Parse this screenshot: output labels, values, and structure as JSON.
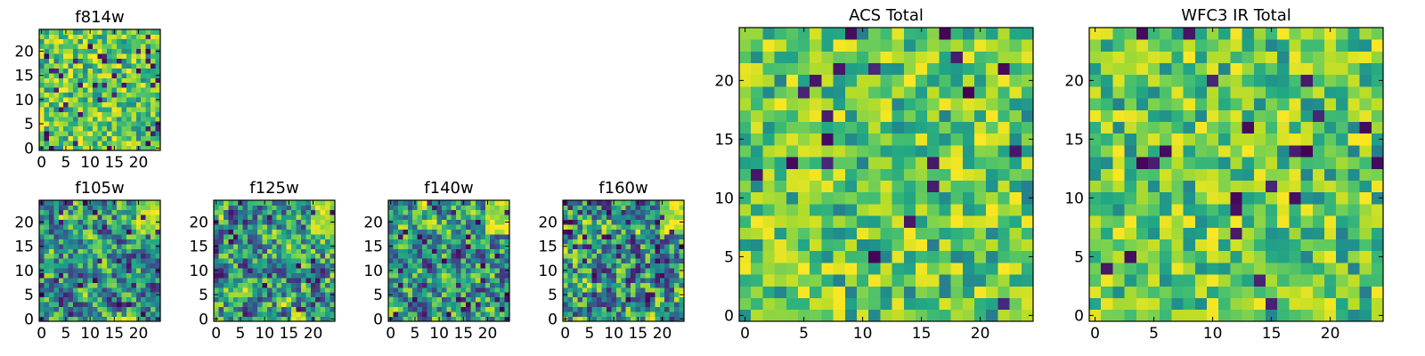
{
  "figure": {
    "background": "#ffffff",
    "colormap": "viridis",
    "grid_size": 25
  },
  "chart_data": [
    {
      "id": "f814w",
      "type": "heatmap",
      "title": "f814w",
      "xticks": [
        0,
        5,
        10,
        15,
        20
      ],
      "yticks": [
        0,
        5,
        10,
        15,
        20
      ],
      "xlim": [
        -0.5,
        24.5
      ],
      "ylim": [
        -0.5,
        24.5
      ],
      "seed": 814,
      "smooth": 0,
      "low_rate": 0.05,
      "bright_corner": false
    },
    {
      "id": "f105w",
      "type": "heatmap",
      "title": "f105w",
      "xticks": [
        0,
        5,
        10,
        15,
        20
      ],
      "yticks": [
        0,
        5,
        10,
        15,
        20
      ],
      "xlim": [
        -0.5,
        24.5
      ],
      "ylim": [
        -0.5,
        24.5
      ],
      "seed": 105,
      "smooth": 1,
      "low_rate": 0.04,
      "bright_corner": true
    },
    {
      "id": "f125w",
      "type": "heatmap",
      "title": "f125w",
      "xticks": [
        0,
        5,
        10,
        15,
        20
      ],
      "yticks": [
        0,
        5,
        10,
        15,
        20
      ],
      "xlim": [
        -0.5,
        24.5
      ],
      "ylim": [
        -0.5,
        24.5
      ],
      "seed": 125,
      "smooth": 1,
      "low_rate": 0.04,
      "bright_corner": true
    },
    {
      "id": "f140w",
      "type": "heatmap",
      "title": "f140w",
      "xticks": [
        0,
        5,
        10,
        15,
        20
      ],
      "yticks": [
        0,
        5,
        10,
        15,
        20
      ],
      "xlim": [
        -0.5,
        24.5
      ],
      "ylim": [
        -0.5,
        24.5
      ],
      "seed": 140,
      "smooth": 1,
      "low_rate": 0.06,
      "bright_corner": true
    },
    {
      "id": "f160w",
      "type": "heatmap",
      "title": "f160w",
      "xticks": [
        0,
        5,
        10,
        15,
        20
      ],
      "yticks": [
        0,
        5,
        10,
        15,
        20
      ],
      "xlim": [
        -0.5,
        24.5
      ],
      "ylim": [
        -0.5,
        24.5
      ],
      "seed": 160,
      "smooth": 1,
      "low_rate": 0.06,
      "bright_corner": true
    },
    {
      "id": "acs",
      "type": "heatmap",
      "title": "ACS Total",
      "xticks": [
        0,
        5,
        10,
        15,
        20
      ],
      "yticks": [
        0,
        5,
        10,
        15,
        20
      ],
      "xlim": [
        -0.5,
        24.5
      ],
      "ylim": [
        -0.5,
        24.5
      ],
      "seed": 901,
      "smooth": 0,
      "low_rate": 0.035,
      "bright_corner": false
    },
    {
      "id": "wfc3ir",
      "type": "heatmap",
      "title": "WFC3 IR Total",
      "xticks": [
        0,
        5,
        10,
        15,
        20
      ],
      "yticks": [
        0,
        5,
        10,
        15,
        20
      ],
      "xlim": [
        -0.5,
        24.5
      ],
      "ylim": [
        -0.5,
        24.5
      ],
      "seed": 902,
      "smooth": 0,
      "low_rate": 0.035,
      "bright_corner": false
    }
  ]
}
